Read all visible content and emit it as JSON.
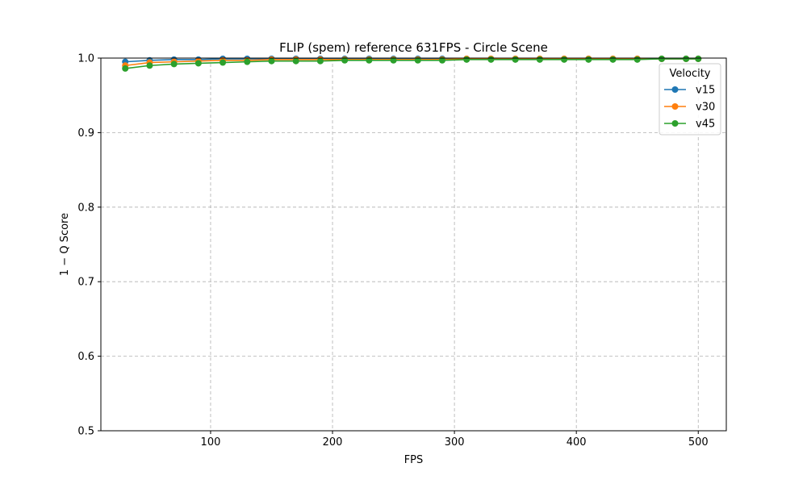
{
  "chart_data": {
    "type": "line",
    "title": "FLIP (spem) reference 631FPS - Circle Scene",
    "xlabel": "FPS",
    "ylabel": "1 − Q Score",
    "xlim": [
      10,
      523
    ],
    "ylim": [
      0.5,
      1.0
    ],
    "x_ticks": [
      100,
      200,
      300,
      400,
      500
    ],
    "y_ticks": [
      0.5,
      0.6,
      0.7,
      0.8,
      0.9,
      1.0
    ],
    "grid": true,
    "legend": {
      "title": "Velocity",
      "position": "top-right"
    },
    "x": [
      30,
      50,
      70,
      90,
      110,
      130,
      150,
      170,
      190,
      210,
      230,
      250,
      270,
      290,
      310,
      330,
      350,
      370,
      390,
      410,
      430,
      450,
      470,
      490,
      500
    ],
    "series": [
      {
        "name": "v15",
        "color": "#1f77b4",
        "values": [
          0.995,
          0.997,
          0.998,
          0.998,
          0.999,
          0.999,
          0.999,
          0.999,
          0.999,
          0.999,
          0.999,
          0.999,
          0.999,
          0.999,
          0.999,
          0.999,
          0.999,
          0.999,
          0.999,
          0.999,
          0.999,
          0.999,
          0.999,
          0.999,
          0.999
        ]
      },
      {
        "name": "v30",
        "color": "#ff7f0e",
        "values": [
          0.99,
          0.994,
          0.995,
          0.996,
          0.997,
          0.997,
          0.998,
          0.998,
          0.998,
          0.998,
          0.998,
          0.998,
          0.998,
          0.998,
          0.999,
          0.999,
          0.999,
          0.999,
          0.999,
          0.999,
          0.999,
          0.999,
          0.999,
          0.999,
          0.999
        ]
      },
      {
        "name": "v45",
        "color": "#2ca02c",
        "values": [
          0.986,
          0.99,
          0.992,
          0.993,
          0.994,
          0.995,
          0.996,
          0.996,
          0.996,
          0.997,
          0.997,
          0.997,
          0.997,
          0.997,
          0.998,
          0.998,
          0.998,
          0.998,
          0.998,
          0.998,
          0.998,
          0.998,
          0.999,
          0.999,
          0.999
        ]
      }
    ]
  }
}
